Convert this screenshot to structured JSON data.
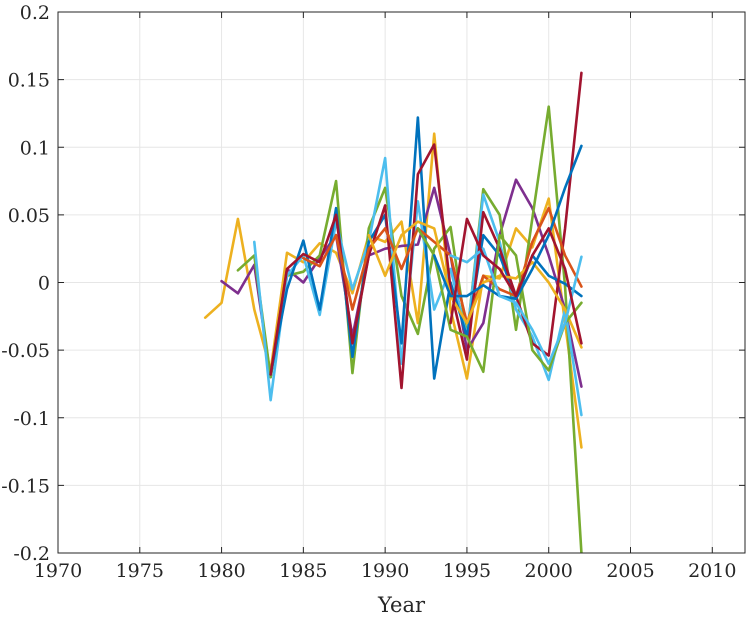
{
  "chart_data": {
    "type": "line",
    "title": "",
    "xlabel": "Year",
    "ylabel": "",
    "xlim": [
      1970,
      2012
    ],
    "ylim": [
      -0.2,
      0.2
    ],
    "xticks": [
      1970,
      1975,
      1980,
      1985,
      1990,
      1995,
      2000,
      2005,
      2010
    ],
    "yticks": [
      0.2,
      0.15,
      0.1,
      0.05,
      0,
      -0.05,
      -0.1,
      -0.15,
      -0.2
    ],
    "xtick_labels": [
      "1970",
      "1975",
      "1980",
      "1985",
      "1990",
      "1995",
      "2000",
      "2005",
      "2010"
    ],
    "ytick_labels": [
      "0.2",
      "0.15",
      "0.1",
      "0.05",
      "0",
      "-0.05",
      "-0.1",
      "-0.15",
      "-0.2"
    ],
    "grid": true,
    "legend": "none",
    "series": [
      {
        "color": "#EDB120",
        "x": [
          1979,
          1980,
          1981,
          1982,
          1983,
          1984,
          1985,
          1986,
          1987,
          1988,
          1989,
          1990,
          1991,
          1992,
          1993,
          1994,
          1995,
          1996,
          1997,
          1998,
          1999,
          2000,
          2001,
          2002
        ],
        "y": [
          -0.026,
          -0.015,
          0.047,
          -0.02,
          -0.065,
          0.022,
          0.015,
          0.029,
          0.022,
          -0.008,
          0.035,
          0.03,
          0.045,
          -0.03,
          0.11,
          -0.02,
          -0.071,
          0.005,
          0.003,
          0.04,
          0.026,
          0.062,
          -0.03,
          -0.122
        ]
      },
      {
        "color": "#7E2F8E",
        "x": [
          1980,
          1981,
          1982,
          1983,
          1984,
          1985,
          1986,
          1987,
          1988,
          1989,
          1990,
          1991,
          1992,
          1993,
          1994,
          1995,
          1996,
          1997,
          1998,
          1999,
          2000,
          2001,
          2002
        ],
        "y": [
          0.001,
          -0.008,
          0.013,
          -0.07,
          0.01,
          0.0,
          0.018,
          0.035,
          -0.04,
          0.02,
          0.025,
          0.027,
          0.028,
          0.07,
          0.02,
          -0.05,
          -0.03,
          0.035,
          0.076,
          0.055,
          0.02,
          -0.02,
          -0.077
        ]
      },
      {
        "color": "#77AC30",
        "x": [
          1981,
          1982,
          1983,
          1984,
          1985,
          1986,
          1987,
          1988,
          1989,
          1990,
          1991,
          1992,
          1993,
          1994,
          1995,
          1996,
          1997,
          1998,
          2000,
          2001,
          2002
        ],
        "y": [
          0.009,
          0.02,
          -0.07,
          0.005,
          0.008,
          0.02,
          0.075,
          -0.067,
          0.04,
          0.07,
          -0.01,
          -0.038,
          0.025,
          0.041,
          -0.04,
          0.069,
          0.05,
          -0.035,
          0.13,
          -0.003,
          -0.2
        ]
      },
      {
        "color": "#4DBEEE",
        "x": [
          1982,
          1983,
          1984,
          1985,
          1986,
          1987,
          1988,
          1989,
          1990,
          1991,
          1992,
          1993,
          1994,
          1995,
          1996,
          1997,
          1998,
          1999,
          2000,
          2001,
          2002
        ],
        "y": [
          0.03,
          -0.087,
          0.005,
          0.02,
          -0.024,
          0.045,
          -0.005,
          0.03,
          0.092,
          -0.06,
          0.06,
          -0.02,
          0.01,
          -0.04,
          0.065,
          0.03,
          -0.02,
          -0.04,
          -0.072,
          -0.02,
          -0.098
        ]
      },
      {
        "color": "#0072BD",
        "x": [
          1983,
          1984,
          1985,
          1986,
          1987,
          1988,
          1989,
          1990,
          1991,
          1992,
          1993,
          1994,
          1995,
          1996,
          1997,
          1998,
          1999,
          2000,
          2001,
          2002
        ],
        "y": [
          -0.068,
          -0.005,
          0.031,
          -0.02,
          0.055,
          -0.055,
          0.03,
          0.05,
          -0.045,
          0.122,
          -0.071,
          0.0,
          -0.04,
          0.035,
          0.02,
          -0.012,
          0.02,
          0.005,
          -0.001,
          -0.01
        ]
      },
      {
        "color": "#A2142F",
        "x": [
          1983,
          1984,
          1985,
          1986,
          1987,
          1988,
          1989,
          1990,
          1991,
          1992,
          1993,
          1994,
          1995,
          1996,
          1997,
          1998,
          1999,
          2000,
          2001,
          2002
        ],
        "y": [
          -0.068,
          0.01,
          0.021,
          0.015,
          0.05,
          -0.045,
          0.02,
          0.057,
          -0.078,
          0.08,
          0.102,
          -0.005,
          -0.057,
          0.052,
          0.025,
          -0.01,
          -0.045,
          -0.054,
          0.04,
          0.155
        ]
      },
      {
        "color": "#D95319",
        "x": [
          1985,
          1986,
          1987,
          1988,
          1989,
          1990,
          1991,
          1992,
          1993,
          1994,
          1995,
          1996,
          1997,
          1998,
          1999,
          2000,
          2001,
          2002
        ],
        "y": [
          0.018,
          0.012,
          0.035,
          -0.02,
          0.025,
          0.04,
          0.01,
          0.04,
          0.03,
          0.02,
          -0.03,
          0.005,
          -0.005,
          -0.01,
          0.03,
          0.055,
          0.02,
          -0.003
        ]
      },
      {
        "color": "#EDB120",
        "x": [
          1989,
          1990,
          1991,
          1992,
          1993,
          1994,
          1995,
          1996,
          1997,
          1998,
          1999,
          2000,
          2001,
          2002
        ],
        "y": [
          0.035,
          0.005,
          0.035,
          0.045,
          0.04,
          -0.01,
          -0.03,
          0.0,
          0.005,
          0.003,
          0.015,
          0.0,
          -0.02,
          -0.048
        ]
      },
      {
        "color": "#77AC30",
        "x": [
          1992,
          1993,
          1994,
          1995,
          1996,
          1997,
          1998,
          1999,
          2000,
          2001,
          2002
        ],
        "y": [
          0.04,
          0.02,
          -0.035,
          -0.04,
          -0.066,
          0.035,
          0.02,
          -0.05,
          -0.065,
          -0.03,
          -0.015
        ]
      },
      {
        "color": "#0072BD",
        "x": [
          1993,
          1994,
          1995,
          1996,
          1997,
          1998,
          1999,
          2000,
          2001,
          2002
        ],
        "y": [
          0.02,
          -0.01,
          -0.01,
          -0.002,
          -0.01,
          -0.012,
          0.01,
          0.035,
          0.07,
          0.101
        ]
      },
      {
        "color": "#4DBEEE",
        "x": [
          1994,
          1995,
          1996,
          1997,
          1998,
          1999,
          2000,
          2001,
          2002
        ],
        "y": [
          0.02,
          0.015,
          0.025,
          -0.01,
          -0.015,
          -0.035,
          -0.06,
          -0.03,
          0.019
        ]
      },
      {
        "color": "#A2142F",
        "x": [
          1994,
          1995,
          1996,
          1997,
          1998,
          1999,
          2000,
          2001,
          2002
        ],
        "y": [
          -0.03,
          0.047,
          0.02,
          0.01,
          -0.01,
          0.02,
          0.04,
          0.01,
          -0.045
        ]
      }
    ]
  }
}
